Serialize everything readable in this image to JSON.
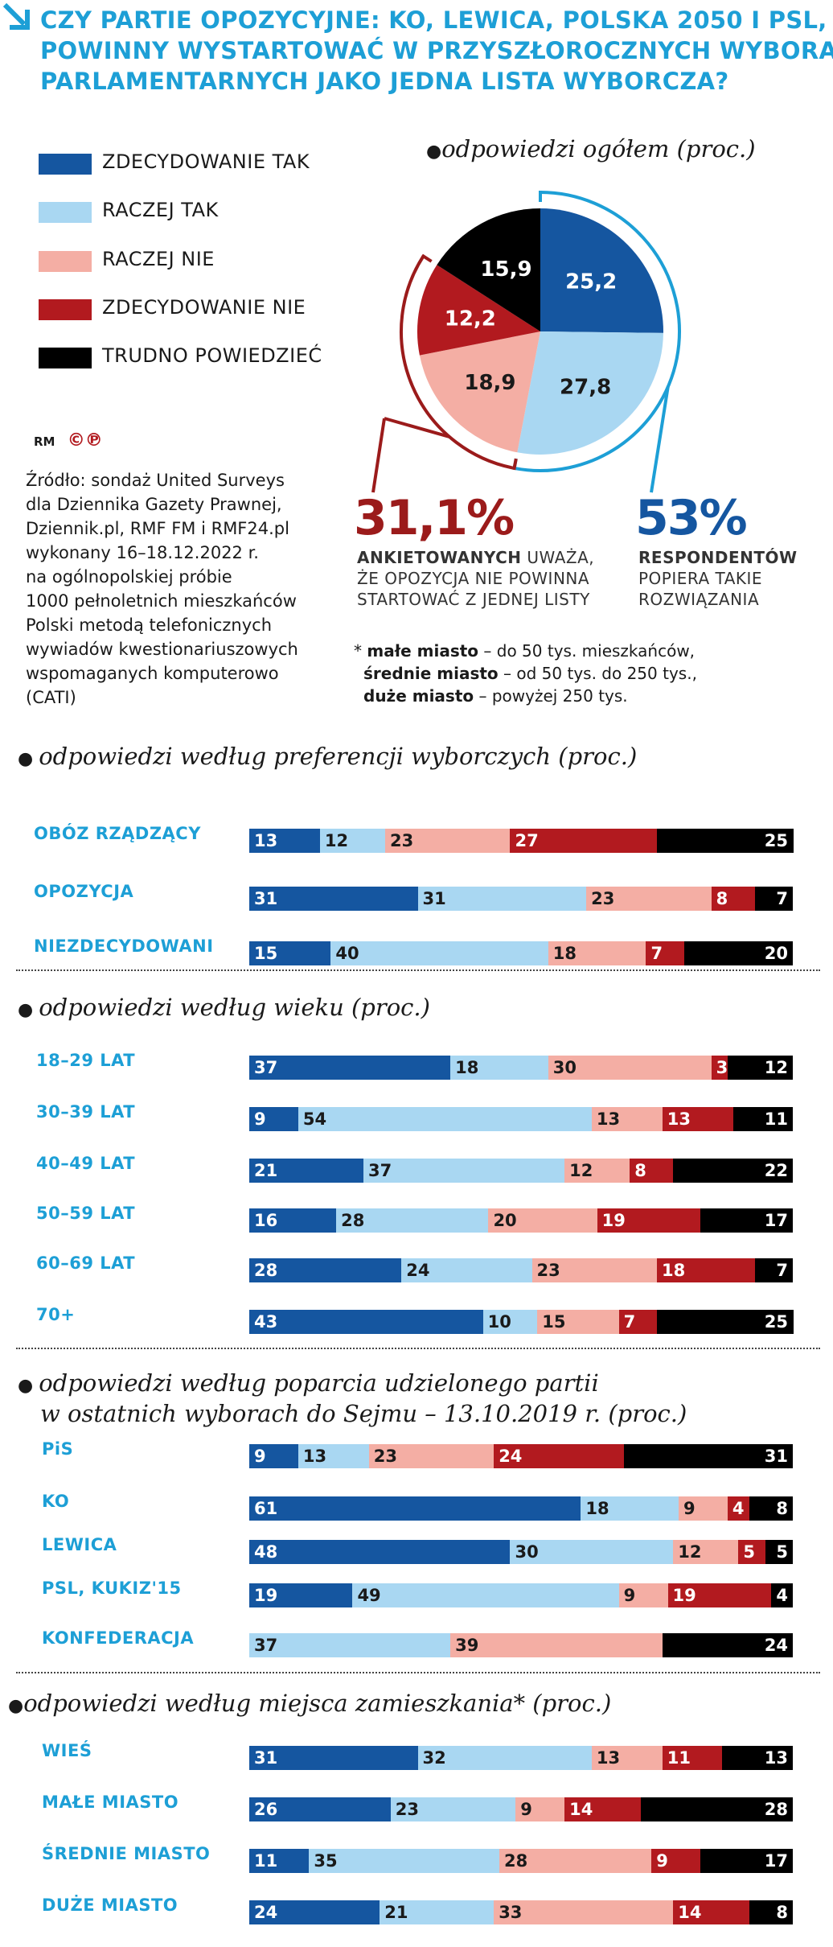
{
  "title": {
    "lines": [
      "CZY PARTIE OPOZYCYJNE: KO, LEWICA, POLSKA 2050 I PSL,",
      "POWINNY WYSTARTOWAĆ W PRZYSZŁOROCZNYCH WYBORACH",
      "PARLAMENTARNYCH JAKO JEDNA LISTA WYBORCZA?"
    ]
  },
  "colors": {
    "zdecydowanie_tak": "#1556a0",
    "raczej_tak": "#a9d7f2",
    "raczej_nie": "#f4aea4",
    "zdecydowanie_nie": "#b21a1f",
    "trudno_powiedziec": "#000000",
    "accent": "#1d9fd6",
    "dark_red": "#9b1b1b"
  },
  "legend": [
    {
      "label": "ZDECYDOWANIE TAK",
      "color": "#1556a0"
    },
    {
      "label": "RACZEJ TAK",
      "color": "#a9d7f2"
    },
    {
      "label": "RACZEJ NIE",
      "color": "#f4aea4"
    },
    {
      "label": "ZDECYDOWANIE NIE",
      "color": "#b21a1f"
    },
    {
      "label": "TRUDNO POWIEDZIEĆ",
      "color": "#000000"
    }
  ],
  "pie": {
    "title": "odpowiedzi ogółem (proc.)",
    "values": [
      "25,2",
      "27,8",
      "18,9",
      "12,2",
      "15,9"
    ]
  },
  "credits": {
    "rm": "RM",
    "logos": "©℗"
  },
  "source": [
    "Źródło: sondaż United Surveys",
    "dla Dziennika Gazety Prawnej,",
    "Dziennik.pl, RMF FM i RMF24.pl",
    "wykonany 16–18.12.2022 r.",
    "na ogólnopolskiej próbie",
    "1000 pełnoletnich mieszkańców",
    "Polski metodą telefonicznych",
    "wywiadów kwestionariuszowych",
    "wspomaganych komputerowo",
    "(CATI)"
  ],
  "summary": {
    "no_pct": "31,1%",
    "no_bold": "ANKIETOWANYCH",
    "no_text1": " UWAŻA,",
    "no_text2": "ŻE OPOZYCJA NIE POWINNA",
    "no_text3": "STARTOWAĆ Z JEDNEJ LISTY",
    "yes_pct": "53%",
    "yes_bold": "RESPONDENTÓW",
    "yes_text1": "POPIERA TAKIE",
    "yes_text2": "ROZWIĄZANIA"
  },
  "footnote": {
    "star": "* ",
    "l1_b": "małe miasto",
    "l1": " – do 50 tys. mieszkańców,",
    "l2_b": "średnie miasto",
    "l2": " – od 50 tys. do 250 tys.,",
    "l3_b": "duże miasto",
    "l3": " – powyżej 250 tys."
  },
  "chart_data": [
    {
      "type": "pie",
      "title": "odpowiedzi ogółem (proc.)",
      "categories": [
        "ZDECYDOWANIE TAK",
        "RACZEJ TAK",
        "RACZEJ NIE",
        "ZDECYDOWANIE NIE",
        "TRUDNO POWIEDZIEĆ"
      ],
      "values": [
        25.2,
        27.8,
        18.9,
        12.2,
        15.9
      ]
    },
    {
      "type": "bar",
      "stacked": true,
      "title": "odpowiedzi według preferencji wyborczych (proc.)",
      "categories": [
        "OBÓZ RZĄDZĄCY",
        "OPOZYCJA",
        "NIEZDECYDOWANI"
      ],
      "rows": [
        [
          13,
          12,
          23,
          27,
          25
        ],
        [
          31,
          31,
          23,
          8,
          7
        ],
        [
          15,
          40,
          18,
          7,
          20
        ]
      ]
    },
    {
      "type": "bar",
      "stacked": true,
      "title": "odpowiedzi według wieku (proc.)",
      "categories": [
        "18–29 LAT",
        "30–39 LAT",
        "40–49 LAT",
        "50–59 LAT",
        "60–69 LAT",
        "70+"
      ],
      "rows": [
        [
          37,
          18,
          30,
          3,
          12
        ],
        [
          9,
          54,
          13,
          13,
          11
        ],
        [
          21,
          37,
          12,
          8,
          22
        ],
        [
          16,
          28,
          20,
          19,
          17
        ],
        [
          28,
          24,
          23,
          18,
          7
        ],
        [
          43,
          10,
          15,
          7,
          25
        ]
      ]
    },
    {
      "type": "bar",
      "stacked": true,
      "title": [
        "odpowiedzi według poparcia udzielonego partii",
        "w ostatnich wyborach do Sejmu – 13.10.2019 r. (proc.)"
      ],
      "categories": [
        "PiS",
        "KO",
        "LEWICA",
        "PSL, KUKIZ'15",
        "KONFEDERACJA"
      ],
      "rows": [
        [
          9,
          13,
          23,
          24,
          31
        ],
        [
          61,
          18,
          9,
          4,
          8
        ],
        [
          48,
          30,
          12,
          5,
          5
        ],
        [
          19,
          49,
          9,
          19,
          4
        ],
        [
          0,
          37,
          39,
          0,
          24
        ]
      ]
    },
    {
      "type": "bar",
      "stacked": true,
      "title": "odpowiedzi według miejsca zamieszkania* (proc.)",
      "categories": [
        "WIEŚ",
        "MAŁE MIASTO",
        "ŚREDNIE MIASTO",
        "DUŻE MIASTO"
      ],
      "rows": [
        [
          31,
          32,
          13,
          11,
          13
        ],
        [
          26,
          23,
          9,
          14,
          28
        ],
        [
          11,
          35,
          28,
          9,
          17
        ],
        [
          24,
          21,
          33,
          14,
          8
        ]
      ]
    }
  ]
}
